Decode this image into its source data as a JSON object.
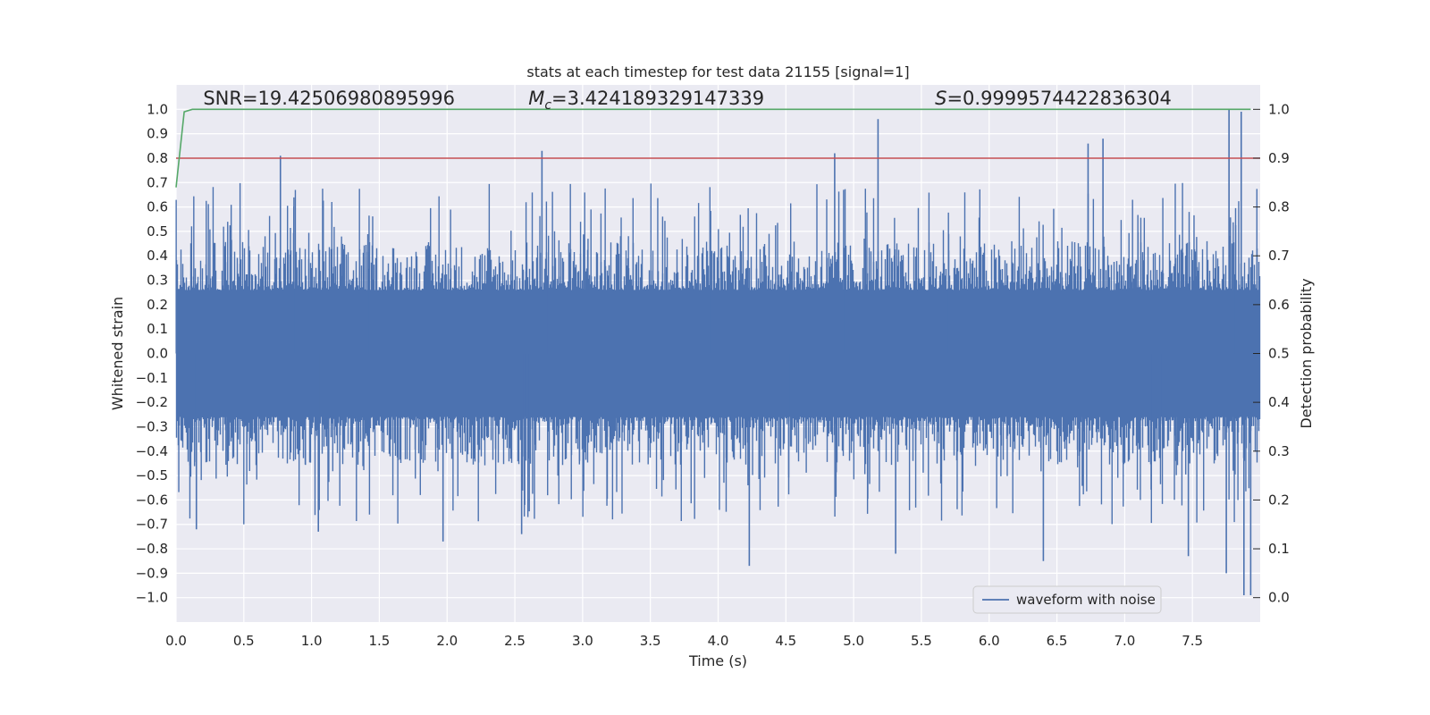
{
  "chart_data": {
    "type": "line",
    "title": "stats at each timestep for test data 21155 [signal=1]",
    "xlabel": "Time (s)",
    "ylabel": "Whitened strain",
    "y2label": "Detection probability",
    "xlim": [
      0.0,
      8.0
    ],
    "ylim": [
      -1.1,
      1.1
    ],
    "y2lim": [
      -0.05,
      1.05
    ],
    "xticks": [
      0.0,
      0.5,
      1.0,
      1.5,
      2.0,
      2.5,
      3.0,
      3.5,
      4.0,
      4.5,
      5.0,
      5.5,
      6.0,
      6.5,
      7.0,
      7.5
    ],
    "xtick_labels": [
      "0.0",
      "0.5",
      "1.0",
      "1.5",
      "2.0",
      "2.5",
      "3.0",
      "3.5",
      "4.0",
      "4.5",
      "5.0",
      "5.5",
      "6.0",
      "6.5",
      "7.0",
      "7.5"
    ],
    "yticks": [
      -1.0,
      -0.9,
      -0.8,
      -0.7,
      -0.6,
      -0.5,
      -0.4,
      -0.3,
      -0.2,
      -0.1,
      0.0,
      0.1,
      0.2,
      0.3,
      0.4,
      0.5,
      0.6,
      0.7,
      0.8,
      0.9,
      1.0
    ],
    "ytick_labels": [
      "−1.0",
      "−0.9",
      "−0.8",
      "−0.7",
      "−0.6",
      "−0.5",
      "−0.4",
      "−0.3",
      "−0.2",
      "−0.1",
      "0.0",
      "0.1",
      "0.2",
      "0.3",
      "0.4",
      "0.5",
      "0.6",
      "0.7",
      "0.8",
      "0.9",
      "1.0"
    ],
    "y2ticks": [
      0.0,
      0.1,
      0.2,
      0.3,
      0.4,
      0.5,
      0.6,
      0.7,
      0.8,
      0.9,
      1.0
    ],
    "y2tick_labels": [
      "0.0",
      "0.1",
      "0.2",
      "0.3",
      "0.4",
      "0.5",
      "0.6",
      "0.7",
      "0.8",
      "0.9",
      "1.0"
    ],
    "series": [
      {
        "name": "waveform with noise",
        "axis": "left",
        "color": "#4c72b0",
        "style": "dense noisy strain, approx. 8000 samples",
        "typical_envelope": [
          -0.45,
          0.45
        ],
        "notable_peaks": [
          {
            "x": 0.77,
            "y": 0.81
          },
          {
            "x": 2.7,
            "y": 0.83
          },
          {
            "x": 4.86,
            "y": 0.82
          },
          {
            "x": 5.18,
            "y": 0.96
          },
          {
            "x": 6.73,
            "y": 0.86
          },
          {
            "x": 6.84,
            "y": 0.88
          },
          {
            "x": 7.77,
            "y": 1.0
          },
          {
            "x": 7.86,
            "y": 0.99
          }
        ],
        "notable_troughs": [
          {
            "x": 0.15,
            "y": -0.72
          },
          {
            "x": 1.05,
            "y": -0.73
          },
          {
            "x": 1.97,
            "y": -0.77
          },
          {
            "x": 2.55,
            "y": -0.74
          },
          {
            "x": 4.23,
            "y": -0.87
          },
          {
            "x": 5.31,
            "y": -0.82
          },
          {
            "x": 6.4,
            "y": -0.85
          },
          {
            "x": 7.47,
            "y": -0.83
          },
          {
            "x": 7.75,
            "y": -0.9
          },
          {
            "x": 7.88,
            "y": -0.99
          },
          {
            "x": 7.93,
            "y": -0.99
          }
        ]
      },
      {
        "name": "detection probability",
        "axis": "right",
        "color": "#55a868",
        "x": [
          0.0,
          0.06,
          0.12,
          7.93
        ],
        "y": [
          0.84,
          0.995,
          1.0,
          1.0
        ]
      }
    ],
    "threshold": {
      "axis": "right",
      "value": 0.9,
      "color": "#c44e52"
    },
    "annotations": [
      {
        "text": "SNR=19.42506980895996",
        "x": 0.2,
        "y": 1.02
      },
      {
        "text": "=3.424189329147339",
        "symbol": "M",
        "subscript": "c",
        "x": 2.6,
        "y": 1.02
      },
      {
        "text": "=0.9999574422836304",
        "symbol": "S",
        "x": 5.6,
        "y": 1.02
      }
    ],
    "legend": {
      "entries": [
        "waveform with noise"
      ],
      "placement": "lower-right"
    },
    "grid": true,
    "colors": {
      "background": "#eaeaf2",
      "grid": "#ffffff",
      "text": "#262626"
    }
  }
}
